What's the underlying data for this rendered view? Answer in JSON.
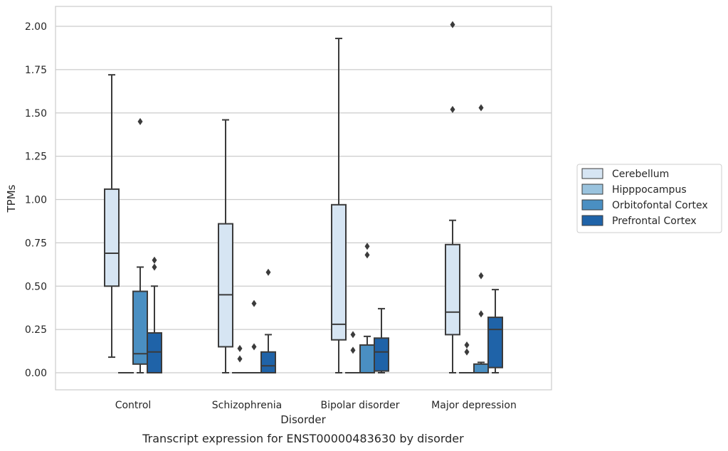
{
  "chart_data": {
    "type": "box",
    "xlabel": "Disorder",
    "ylabel": "TPMs",
    "caption": "Transcript expression for ENST00000483630 by disorder",
    "ylim": [
      -0.1,
      2.11
    ],
    "yticks": [
      "0.00",
      "0.25",
      "0.50",
      "0.75",
      "1.00",
      "1.25",
      "1.50",
      "1.75",
      "2.00"
    ],
    "ytick_values": [
      0,
      0.25,
      0.5,
      0.75,
      1.0,
      1.25,
      1.5,
      1.75,
      2.0
    ],
    "grid": true,
    "legend_position": "right",
    "categories": [
      "Control",
      "Schizophrenia",
      "Bipolar disorder",
      "Major depression"
    ],
    "series": [
      {
        "name": "Cerebellum",
        "color": "#d6e5f3",
        "boxes": [
          {
            "whislo": 0.09,
            "q1": 0.5,
            "med": 0.69,
            "q3": 1.06,
            "whishi": 1.72,
            "fliers": []
          },
          {
            "whislo": 0.0,
            "q1": 0.15,
            "med": 0.45,
            "q3": 0.86,
            "whishi": 1.46,
            "fliers": []
          },
          {
            "whislo": 0.0,
            "q1": 0.19,
            "med": 0.28,
            "q3": 0.97,
            "whishi": 1.93,
            "fliers": []
          },
          {
            "whislo": 0.0,
            "q1": 0.22,
            "med": 0.35,
            "q3": 0.74,
            "whishi": 0.88,
            "fliers": [
              1.52,
              2.01
            ]
          }
        ]
      },
      {
        "name": "Hipppocampus",
        "color": "#9ac3de",
        "boxes": [
          {
            "whislo": 0.0,
            "q1": 0.0,
            "med": 0.0,
            "q3": 0.0,
            "whishi": 0.0,
            "fliers": []
          },
          {
            "whislo": 0.0,
            "q1": 0.0,
            "med": 0.0,
            "q3": 0.0,
            "whishi": 0.0,
            "fliers": [
              0.08,
              0.14
            ]
          },
          {
            "whislo": 0.0,
            "q1": 0.0,
            "med": 0.0,
            "q3": 0.0,
            "whishi": 0.0,
            "fliers": [
              0.13,
              0.22
            ]
          },
          {
            "whislo": 0.0,
            "q1": 0.0,
            "med": 0.0,
            "q3": 0.0,
            "whishi": 0.0,
            "fliers": [
              0.12,
              0.16
            ]
          }
        ]
      },
      {
        "name": "Orbitofontal Cortex",
        "color": "#4a8fc2",
        "boxes": [
          {
            "whislo": 0.0,
            "q1": 0.05,
            "med": 0.11,
            "q3": 0.47,
            "whishi": 0.61,
            "fliers": [
              1.45
            ]
          },
          {
            "whislo": 0.0,
            "q1": 0.0,
            "med": 0.0,
            "q3": 0.0,
            "whishi": 0.0,
            "fliers": [
              0.15,
              0.4
            ]
          },
          {
            "whislo": 0.0,
            "q1": 0.0,
            "med": 0.0,
            "q3": 0.16,
            "whishi": 0.21,
            "fliers": [
              0.68,
              0.73
            ]
          },
          {
            "whislo": 0.0,
            "q1": 0.0,
            "med": 0.0,
            "q3": 0.05,
            "whishi": 0.06,
            "fliers": [
              0.34,
              0.56,
              1.53
            ]
          }
        ]
      },
      {
        "name": "Prefrontal Cortex",
        "color": "#1f63a8",
        "boxes": [
          {
            "whislo": 0.0,
            "q1": 0.0,
            "med": 0.12,
            "q3": 0.23,
            "whishi": 0.5,
            "fliers": [
              0.61,
              0.65
            ]
          },
          {
            "whislo": 0.0,
            "q1": 0.0,
            "med": 0.04,
            "q3": 0.12,
            "whishi": 0.22,
            "fliers": [
              0.58
            ]
          },
          {
            "whislo": 0.0,
            "q1": 0.01,
            "med": 0.12,
            "q3": 0.2,
            "whishi": 0.37,
            "fliers": []
          },
          {
            "whislo": 0.0,
            "q1": 0.03,
            "med": 0.25,
            "q3": 0.32,
            "whishi": 0.48,
            "fliers": []
          }
        ]
      }
    ]
  }
}
